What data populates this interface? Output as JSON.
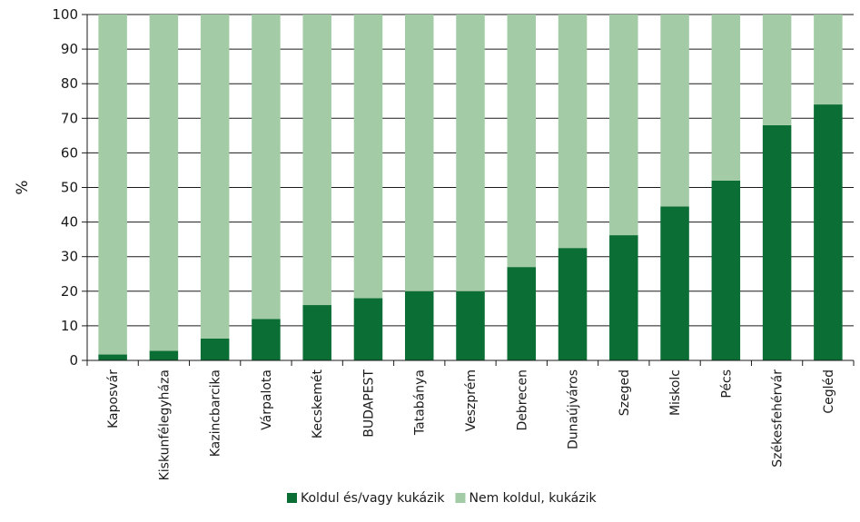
{
  "chart_data": {
    "type": "bar",
    "stacked": true,
    "ylabel": "%",
    "ylim": [
      0,
      100
    ],
    "yticks": [
      0,
      10,
      20,
      30,
      40,
      50,
      60,
      70,
      80,
      90,
      100
    ],
    "grid": "horizontal",
    "legend_position": "bottom",
    "categories": [
      "Kaposvár",
      "Kiskunfélegyháza",
      "Kazincbarcika",
      "Várpalota",
      "Kecskemét",
      "BUDAPEST",
      "Tatabánya",
      "Veszprém",
      "Debrecen",
      "Dunaújváros",
      "Szeged",
      "Miskolc",
      "Pécs",
      "Székesfehérvár",
      "Cegléd"
    ],
    "series": [
      {
        "name": "Koldul és/vagy kukázik",
        "color": "#0b6e35",
        "values": [
          1.7,
          2.8,
          6.3,
          12,
          16,
          18,
          20,
          20,
          27,
          32.5,
          36.2,
          44.5,
          52,
          68,
          74
        ]
      },
      {
        "name": "Nem koldul, kukázik",
        "color": "#a3cca6",
        "values": [
          98.3,
          97.2,
          93.7,
          88,
          84,
          82,
          80,
          80,
          73,
          67.5,
          63.8,
          55.5,
          48,
          32,
          26
        ]
      }
    ]
  }
}
